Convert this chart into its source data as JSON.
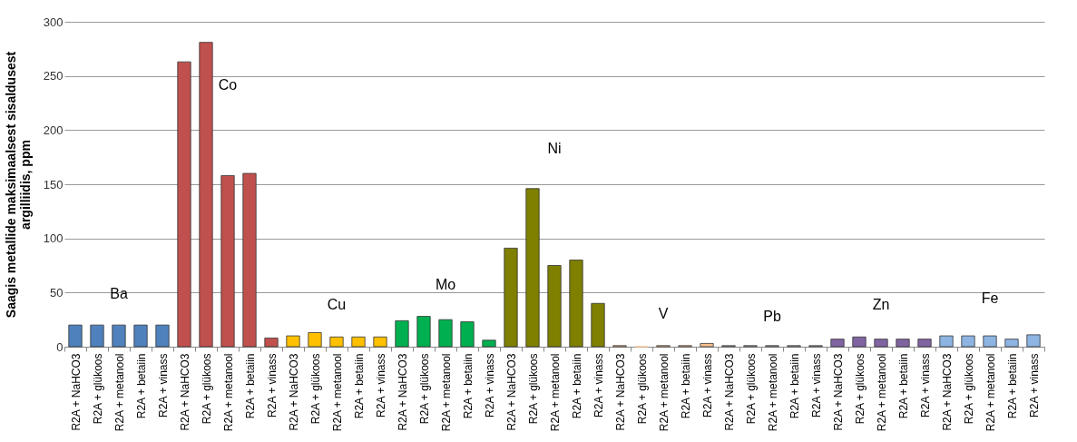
{
  "chart_data": {
    "type": "bar",
    "ylabel": "Saagis metallide maksimaalsest sisaldusest\nargilliidis, ppm",
    "categories": [
      "R2A + NaHCO3",
      "R2A + glükoos",
      "R2A + metanool",
      "R2A + betaiin",
      "R2A + vinass",
      "R2A + NaHCO3",
      "R2A + glükoos",
      "R2A + metanool",
      "R2A + betaiin",
      "R2A + vinass",
      "R2A + NaHCO3",
      "R2A + glükoos",
      "R2A + metanool",
      "R2A + betaiin",
      "R2A + vinass",
      "R2A + NaHCO3",
      "R2A + glükoos",
      "R2A + metanool",
      "R2A + betaiin",
      "R2A + vinass",
      "R2A + NaHCO3",
      "R2A + glükoos",
      "R2A + metanool",
      "R2A + betaiin",
      "R2A + vinass",
      "R2A + NaHCO3",
      "R2A + glükoos",
      "R2A + metanool",
      "R2A + betaiin",
      "R2A + vinass",
      "R2A + NaHCO3",
      "R2A + glükoos",
      "R2A + metanool",
      "R2A + betaiin",
      "R2A + vinass",
      "R2A + NaHCO3",
      "R2A + glükoos",
      "R2A + metanool",
      "R2A + betaiin",
      "R2A + vinass",
      "R2A + NaHCO3",
      "R2A + glükoos",
      "R2A + metanool",
      "R2A + betaiin",
      "R2A + vinass"
    ],
    "values": [
      20,
      20,
      20,
      20,
      20,
      263,
      281,
      158,
      160,
      8,
      10,
      13,
      9,
      9,
      9,
      24,
      28,
      25,
      23,
      6,
      91,
      146,
      75,
      80,
      40,
      1,
      0,
      1,
      1,
      3,
      1,
      1,
      1,
      1,
      1,
      7,
      9,
      7,
      7,
      7,
      10,
      10,
      10,
      7,
      11
    ],
    "colors": [
      "#4f81bd",
      "#4f81bd",
      "#4f81bd",
      "#4f81bd",
      "#4f81bd",
      "#c0504d",
      "#c0504d",
      "#c0504d",
      "#c0504d",
      "#c0504d",
      "#ffc000",
      "#ffc000",
      "#ffc000",
      "#ffc000",
      "#ffc000",
      "#00b050",
      "#00b050",
      "#00b050",
      "#00b050",
      "#00b050",
      "#7f7f00",
      "#7f7f00",
      "#7f7f00",
      "#7f7f00",
      "#7f7f00",
      "#fac090",
      "#fac090",
      "#fac090",
      "#fac090",
      "#fac090",
      "#a6a6a6",
      "#a6a6a6",
      "#a6a6a6",
      "#a6a6a6",
      "#a6a6a6",
      "#8064a2",
      "#8064a2",
      "#8064a2",
      "#8064a2",
      "#8064a2",
      "#8db4e2",
      "#8db4e2",
      "#8db4e2",
      "#8db4e2",
      "#8db4e2"
    ],
    "annotations": [
      "Ba",
      "Co",
      "Cu",
      "Mo",
      "Ni",
      "V",
      "Pb",
      "Zn",
      "Fe"
    ],
    "ylim": [
      0,
      300
    ],
    "yticks": [
      0,
      50,
      100,
      150,
      200,
      250,
      300
    ],
    "grid": "y"
  }
}
